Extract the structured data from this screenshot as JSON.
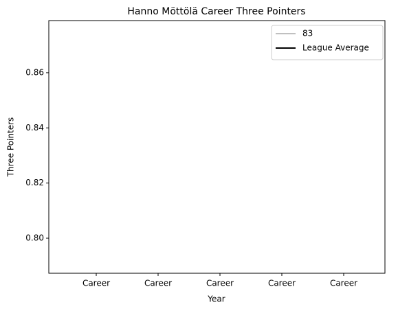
{
  "chart_data": {
    "type": "line",
    "title": "Hanno Möttölä Career Three Pointers",
    "xlabel": "Year",
    "ylabel": "Three Pointers",
    "categories": [
      "Career",
      "Career",
      "Career",
      "Career",
      "Career"
    ],
    "series": [
      {
        "name": "83",
        "color": "#c0c0c0",
        "values": [
          null,
          null,
          null,
          null,
          null
        ]
      },
      {
        "name": "League Average",
        "color": "#000000",
        "values": [
          null,
          null,
          null,
          null,
          null
        ]
      }
    ],
    "ylim": [
      0.7873,
      0.8789
    ],
    "yticks": [
      {
        "value": 0.8,
        "label": "0.80"
      },
      0.82,
      0.84,
      0.86
    ],
    "legend": "upper right"
  }
}
